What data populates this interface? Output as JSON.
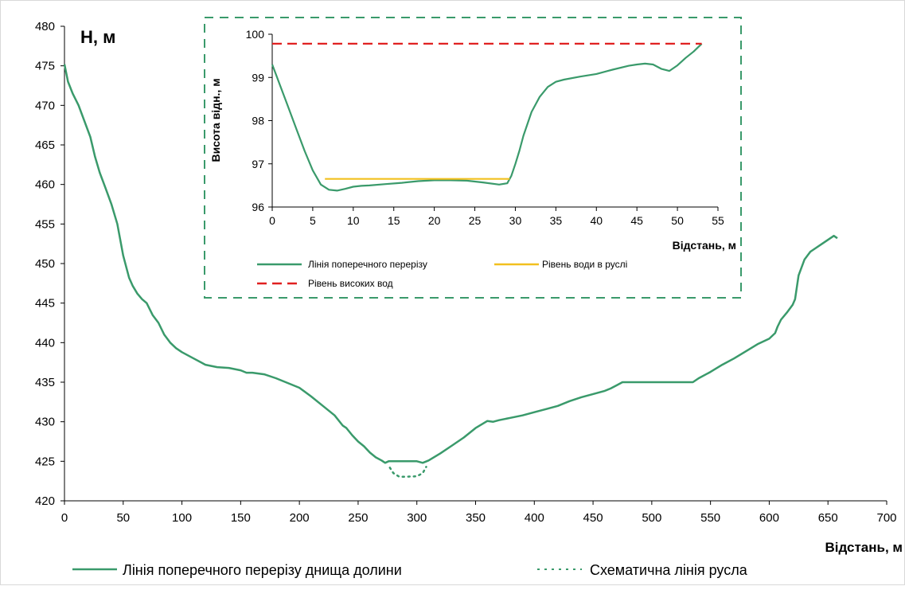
{
  "chart_data": [
    {
      "type": "line",
      "ylabel": "H, м",
      "xlabel": "Відстань, м",
      "xlim": [
        0,
        700
      ],
      "ylim": [
        420,
        480
      ],
      "xticks": [
        "0",
        "50",
        "100",
        "150",
        "200",
        "250",
        "300",
        "350",
        "400",
        "450",
        "500",
        "550",
        "600",
        "650",
        "700"
      ],
      "yticks": [
        "420",
        "425",
        "430",
        "435",
        "440",
        "445",
        "450",
        "455",
        "460",
        "465",
        "470",
        "475",
        "480"
      ],
      "grid": false,
      "legend_position": "bottom",
      "series": [
        {
          "name": "Лінія поперечного перерізу днища долини",
          "color": "#3a9a6b",
          "style": "solid",
          "x": [
            0,
            3,
            7,
            12,
            17,
            22,
            26,
            30,
            35,
            40,
            45,
            50,
            55,
            58,
            62,
            66,
            70,
            75,
            80,
            85,
            90,
            95,
            100,
            110,
            120,
            130,
            140,
            150,
            155,
            160,
            165,
            170,
            180,
            190,
            200,
            210,
            220,
            230,
            237,
            240,
            245,
            250,
            255,
            260,
            265,
            270,
            273,
            276,
            280,
            290,
            300,
            305,
            310,
            320,
            330,
            340,
            350,
            360,
            365,
            370,
            380,
            390,
            400,
            410,
            420,
            430,
            440,
            450,
            460,
            465,
            470,
            475,
            480,
            500,
            520,
            535,
            540,
            550,
            560,
            570,
            580,
            590,
            600,
            605,
            607,
            610,
            615,
            620,
            622,
            625,
            630,
            635,
            640,
            645,
            650,
            655,
            658
          ],
          "y": [
            475.2,
            473,
            471.5,
            470,
            468,
            466,
            463.5,
            461.5,
            459.5,
            457.5,
            455,
            451,
            448.2,
            447.2,
            446.2,
            445.5,
            445,
            443.5,
            442.5,
            441,
            440,
            439.3,
            438.8,
            438,
            437.2,
            436.9,
            436.8,
            436.5,
            436.2,
            436.2,
            436.1,
            436,
            435.5,
            434.9,
            434.3,
            433.2,
            432,
            430.8,
            429.5,
            429.2,
            428.3,
            427.5,
            426.9,
            426.1,
            425.5,
            425.1,
            424.8,
            425,
            425,
            425,
            425,
            424.8,
            425.1,
            426,
            427,
            428,
            429.2,
            430.1,
            430,
            430.2,
            430.5,
            430.8,
            431.2,
            431.6,
            432,
            432.6,
            433.1,
            433.5,
            433.9,
            434.2,
            434.6,
            435,
            435,
            435,
            435,
            435,
            435.5,
            436.3,
            437.2,
            438,
            438.9,
            439.8,
            440.5,
            441.2,
            442,
            442.9,
            443.8,
            444.8,
            445.5,
            448.5,
            450.5,
            451.5,
            452,
            452.5,
            453,
            453.5,
            453.2
          ]
        },
        {
          "name": "Схематична лінія русла",
          "color": "#3a9a6b",
          "style": "dotted",
          "x": [
            277,
            280,
            285,
            290,
            300,
            305,
            308
          ],
          "y": [
            424.2,
            423.5,
            423.05,
            423.05,
            423.1,
            423.5,
            424.3
          ]
        }
      ]
    },
    {
      "type": "line",
      "ylabel": "Висота відн., м",
      "xlabel": "Відстань, м",
      "xlim": [
        0,
        55
      ],
      "ylim": [
        96,
        100
      ],
      "xticks": [
        "0",
        "5",
        "10",
        "15",
        "20",
        "25",
        "30",
        "35",
        "40",
        "45",
        "50",
        "55"
      ],
      "yticks": [
        "96",
        "97",
        "98",
        "99",
        "100"
      ],
      "grid": false,
      "legend_position": "bottom",
      "series": [
        {
          "name": "Лінія поперечного перерізу",
          "color": "#3a9a6b",
          "style": "solid",
          "x": [
            0,
            0.5,
            1,
            2,
            3,
            4,
            5,
            6,
            7,
            8,
            9,
            10,
            11,
            12,
            14,
            16,
            18,
            20,
            22,
            24,
            26,
            28,
            29,
            29.5,
            30,
            30.5,
            31,
            32,
            33,
            34,
            35,
            36,
            38,
            40,
            42,
            44,
            45,
            46,
            47,
            48,
            49,
            50,
            51,
            52,
            53
          ],
          "y": [
            99.3,
            99.05,
            98.8,
            98.3,
            97.8,
            97.3,
            96.85,
            96.52,
            96.4,
            96.38,
            96.42,
            96.47,
            96.49,
            96.5,
            96.53,
            96.56,
            96.6,
            96.62,
            96.62,
            96.61,
            96.57,
            96.52,
            96.55,
            96.72,
            97,
            97.3,
            97.65,
            98.2,
            98.55,
            98.78,
            98.9,
            98.95,
            99.02,
            99.08,
            99.18,
            99.27,
            99.3,
            99.32,
            99.3,
            99.2,
            99.15,
            99.28,
            99.45,
            99.6,
            99.78
          ]
        },
        {
          "name": "Рівень води в руслі",
          "color": "#f2c01e",
          "style": "solid",
          "x": [
            6.5,
            29.3
          ],
          "y": [
            96.65,
            96.65
          ]
        },
        {
          "name": "Рівень високих вод",
          "color": "#e02020",
          "style": "dashed",
          "x": [
            0,
            53
          ],
          "y": [
            99.78,
            99.78
          ]
        }
      ]
    }
  ]
}
